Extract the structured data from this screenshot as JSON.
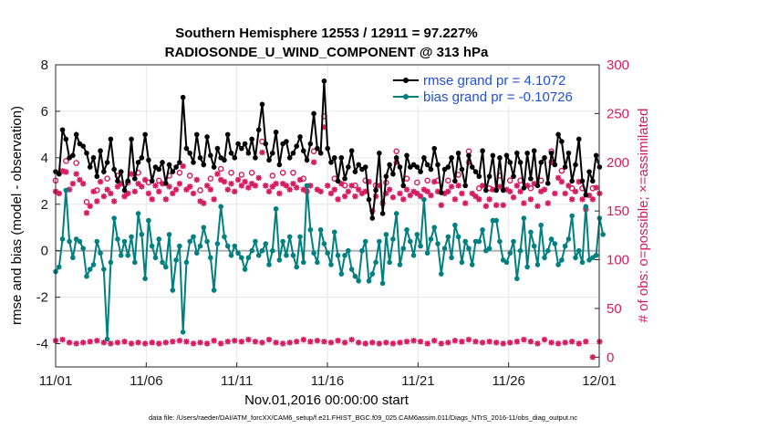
{
  "chart_data": {
    "type": "line",
    "title": "Southern Hemisphere 12553 / 12911 = 97.227%",
    "subtitle": "RADIOSONDE_U_WIND_COMPONENT @ 313 hPa",
    "xlabel": "Nov.01,2016 00:00:00 start",
    "ylabel": "rmse and bias (model - observation)",
    "ylabel_right": "# of obs: o=possible; ×=assimilated",
    "footnote": "data file: /Users/raeder/DAI/ATM_forcXX/CAM6_setup/f.e21.FHIST_BGC.f09_025.CAM6assim.011/Diags_NTrS_2016-11/obs_diag_output.nc",
    "ylim": [
      -5,
      8
    ],
    "ylim_right": [
      -10,
      300
    ],
    "xlim": [
      0,
      30
    ],
    "x_ticks": [
      0,
      5,
      10,
      15,
      20,
      25,
      30
    ],
    "x_tick_labels": [
      "11/01",
      "11/06",
      "11/11",
      "11/16",
      "11/21",
      "11/26",
      "12/01"
    ],
    "y_ticks": [
      -4,
      -2,
      0,
      2,
      4,
      6,
      8
    ],
    "y_tick_labels": [
      "-4",
      "-2",
      "0",
      "2",
      "4",
      "6",
      "8"
    ],
    "y_right_ticks": [
      0,
      50,
      100,
      150,
      200,
      250,
      300
    ],
    "y_right_tick_labels": [
      "0",
      "50",
      "100",
      "150",
      "200",
      "250",
      "300"
    ],
    "legend_location": "top-right",
    "colors": {
      "rmse": "#000000",
      "bias": "#008080",
      "obs": "#d81b60",
      "zero_line": "#b0b0b0"
    },
    "series": [
      {
        "name": "rmse grand pr = 4.1072",
        "axis": "left",
        "values": [
          3.4,
          3.3,
          5.2,
          4.8,
          4.0,
          4.1,
          5.0,
          4.6,
          4.5,
          4.2,
          3.6,
          4.0,
          3.2,
          4.3,
          3.4,
          3.8,
          4.8,
          3.5,
          3.0,
          3.4,
          2.6,
          3.0,
          4.8,
          3.1,
          3.8,
          4.0,
          5.0,
          3.9,
          3.0,
          3.6,
          3.5,
          3.8,
          2.9,
          3.7,
          3.4,
          3.6,
          3.8,
          6.6,
          4.4,
          4.2,
          3.8,
          5.0,
          4.0,
          3.7,
          4.9,
          4.1,
          3.6,
          4.4,
          4.0,
          3.9,
          5.0,
          4.2,
          4.0,
          4.6,
          4.4,
          4.6,
          4.2,
          4.8,
          4.0,
          5.2,
          6.3,
          4.6,
          3.9,
          4.2,
          5.1,
          3.7,
          4.6,
          4.7,
          4.0,
          4.2,
          4.5,
          4.9,
          4.3,
          3.9,
          4.6,
          5.9,
          4.4,
          4.2,
          7.3,
          4.4,
          3.8,
          4.0,
          3.0,
          4.0,
          3.1,
          3.6,
          4.3,
          3.4,
          3.7,
          3.5,
          3.6,
          2.2,
          1.4,
          2.6,
          4.2,
          1.6,
          3.2,
          3.7,
          3.3,
          4.0,
          3.6,
          2.8,
          4.1,
          3.6,
          3.7,
          3.6,
          3.4,
          4.0,
          3.7,
          3.5,
          4.4,
          3.7,
          2.5,
          3.5,
          3.6,
          4.0,
          3.0,
          4.2,
          3.5,
          2.8,
          4.1,
          3.6,
          3.4,
          3.2,
          4.3,
          2.6,
          3.2,
          4.1,
          2.6,
          4.0,
          2.6,
          4.1,
          3.8,
          3.2,
          4.2,
          3.8,
          2.7,
          4.2,
          3.1,
          4.3,
          2.8,
          3.8,
          4.0,
          2.9,
          4.2,
          3.7,
          5.0,
          4.7,
          3.6,
          4.2,
          3.0,
          3.7,
          4.8,
          3.0,
          2.4,
          3.4,
          3.0,
          4.1,
          3.6
        ],
        "x_start": 0.0,
        "x_step": 0.19
      },
      {
        "name": "bias grand pr = -0.10726",
        "axis": "left",
        "values": [
          -0.9,
          -0.7,
          0.5,
          2.6,
          0.4,
          -0.3,
          0.5,
          0.4,
          0.1,
          -1.1,
          -0.8,
          -0.6,
          0.4,
          -0.1,
          -0.8,
          -3.8,
          -0.5,
          1.4,
          0.5,
          -0.2,
          0.4,
          -0.2,
          0.6,
          -0.5,
          1.6,
          0.7,
          -1.2,
          1.3,
          0.2,
          -0.3,
          0.5,
          -0.5,
          -0.7,
          0.7,
          -1.7,
          -0.4,
          0.2,
          -3.5,
          -0.5,
          0.4,
          0.6,
          -0.1,
          0.2,
          1.0,
          0.4,
          -0.3,
          -1.7,
          0.3,
          1.9,
          0.6,
          0.2,
          -0.2,
          0.2,
          -0.1,
          -0.3,
          -0.8,
          -0.3,
          0.0,
          0.4,
          -0.2,
          0.0,
          0.3,
          -0.6,
          0.0,
          1.8,
          -0.4,
          0.4,
          -0.2,
          0.6,
          -0.2,
          -0.7,
          0.6,
          -0.5,
          2.8,
          0.9,
          -0.1,
          -0.5,
          0.9,
          0.3,
          -0.1,
          -0.6,
          0.8,
          -0.2,
          -1.0,
          -0.2,
          0.0,
          -0.8,
          -1.1,
          -1.3,
          0.0,
          0.4,
          -1.3,
          -1.0,
          -0.5,
          0.4,
          -1.4,
          0.7,
          -0.5,
          0.5,
          1.6,
          -0.6,
          0.1,
          0.9,
          0.4,
          -0.2,
          0.7,
          0.2,
          2.2,
          -0.1,
          0.5,
          1.0,
          0.3,
          -1.0,
          0.1,
          0.6,
          -0.3,
          1.1,
          0.6,
          -0.5,
          0.4,
          0.1,
          -0.6,
          0.4,
          0.4,
          0.9,
          0.0,
          0.1,
          1.3,
          1.3,
          0.4,
          -0.4,
          -0.5,
          -0.1,
          0.4,
          -1.2,
          0.0,
          1.4,
          -0.7,
          0.8,
          0.2,
          -0.6,
          1.1,
          -0.3,
          0.0,
          0.5,
          0.3,
          -0.6,
          -0.4,
          0.2,
          0.5,
          1.5,
          -0.3,
          0.0,
          -0.5,
          1.9,
          -0.4,
          -0.3,
          -0.2,
          1.4,
          0.7
        ],
        "x_start": 0.0,
        "x_step": 0.19
      },
      {
        "name": "obs possible (o)",
        "axis": "right",
        "high": [
          170,
          168,
          191,
          190,
          172,
          178,
          188,
          182,
          178,
          148,
          155,
          170,
          160,
          180,
          165,
          172,
          168,
          160,
          175,
          178,
          165,
          168,
          188,
          170,
          178,
          175,
          182,
          168,
          162,
          176,
          170,
          178,
          162,
          175,
          168,
          172,
          178,
          196,
          172,
          175,
          168,
          182,
          160,
          158,
          176,
          172,
          162,
          188,
          182,
          180,
          172,
          178,
          170,
          182,
          176,
          180,
          174,
          178,
          176,
          184,
          210,
          176,
          170,
          175,
          178,
          168,
          178,
          176,
          172,
          178,
          174,
          182,
          172,
          170,
          176,
          200,
          172,
          170,
          236,
          176,
          168,
          172,
          162,
          178,
          165,
          170,
          176,
          165,
          172,
          168,
          170,
          180,
          150,
          165,
          176,
          158,
          168,
          172,
          164,
          200,
          168,
          162,
          172,
          166,
          170,
          168,
          165,
          172,
          170,
          166,
          180,
          170,
          156,
          168,
          170,
          175,
          162,
          176,
          168,
          158,
          200,
          168,
          165,
          162,
          176,
          155,
          162,
          172,
          156,
          175,
          156,
          172,
          170,
          164,
          176,
          170,
          158,
          176,
          162,
          178,
          155,
          170,
          172,
          158,
          200,
          168,
          184,
          180,
          168,
          176,
          162,
          170,
          180,
          162,
          152,
          166,
          162,
          174,
          168
        ],
        "low": [
          17,
          14,
          18,
          16,
          15,
          17,
          14,
          16,
          15,
          14,
          16,
          15,
          17,
          14,
          15,
          16,
          14,
          17,
          15,
          14,
          16,
          15,
          14,
          17,
          15,
          18,
          14,
          16,
          15,
          17,
          14,
          16,
          15,
          17,
          16,
          14,
          17,
          15,
          16,
          18,
          14,
          16,
          15,
          17,
          14,
          16,
          17,
          15,
          14,
          18,
          16,
          15,
          17,
          14,
          16,
          15,
          18,
          14,
          16,
          17,
          15,
          14,
          18,
          16,
          15,
          17,
          14,
          16,
          15,
          17,
          16,
          15,
          18,
          14,
          16,
          15,
          17,
          14,
          16,
          18,
          15,
          14,
          17,
          16,
          15,
          14,
          18,
          16,
          15,
          17,
          14,
          16,
          15,
          18,
          14,
          16,
          15,
          17,
          14,
          16,
          15,
          18,
          16,
          14,
          17,
          15,
          16,
          18,
          14,
          15,
          17,
          16,
          14,
          18,
          15,
          16,
          17,
          14,
          16,
          15,
          18,
          14,
          16,
          17,
          15,
          14,
          16,
          18,
          15,
          17,
          14,
          16,
          15,
          17,
          16,
          14,
          18,
          15,
          16,
          17,
          14,
          15,
          18,
          16,
          15,
          17,
          14,
          16,
          15,
          18,
          16,
          15,
          14,
          17,
          16,
          15,
          0,
          14,
          16
        ],
        "x_start": 0.0,
        "x_step": 0.19
      }
    ]
  }
}
